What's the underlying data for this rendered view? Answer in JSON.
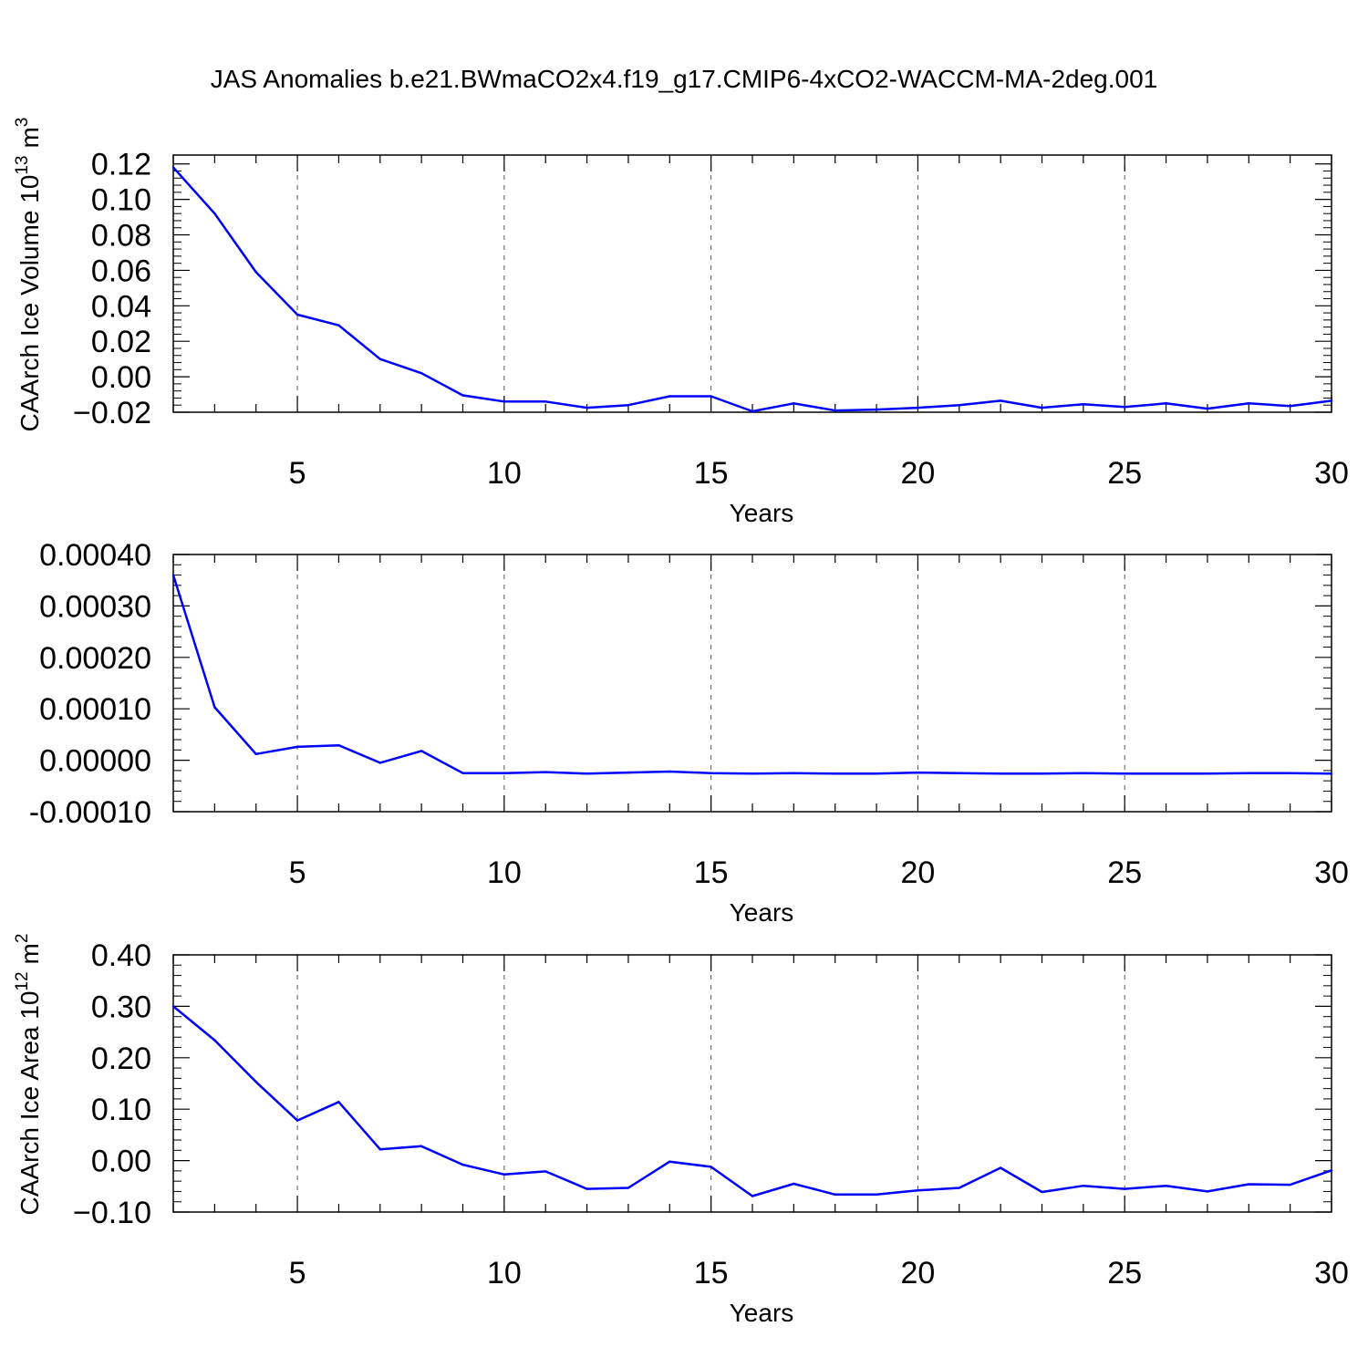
{
  "title": "JAS Anomalies b.e21.BWmaCO2x4.f19_g17.CMIP6-4xCO2-WACCM-MA-2deg.001",
  "colors": {
    "line": "#0000ff",
    "axis": "#000000",
    "grid": "#555555"
  },
  "chart_data": [
    {
      "type": "line",
      "title": "",
      "xlabel": "Years",
      "ylabel": "CAArch Ice Volume 10",
      "ylabel_exp": "13",
      "ylabel_unit": "m",
      "ylabel_unit_exp": "3",
      "xlim": [
        2,
        30
      ],
      "ylim": [
        -0.02,
        0.125
      ],
      "xticks": [
        5,
        10,
        15,
        20,
        25,
        30
      ],
      "xtick_labels": [
        "5",
        "10",
        "15",
        "20",
        "25",
        "30"
      ],
      "yticks": [
        -0.02,
        0.0,
        0.02,
        0.04,
        0.06,
        0.08,
        0.1,
        0.12
      ],
      "ytick_labels": [
        "−0.02",
        "0.00",
        "0.02",
        "0.04",
        "0.06",
        "0.08",
        "0.10",
        "0.12"
      ],
      "grid": "vertical dashed at major x ticks",
      "x": [
        2,
        3,
        4,
        5,
        6,
        7,
        8,
        9,
        10,
        11,
        12,
        13,
        14,
        15,
        16,
        17,
        18,
        19,
        20,
        21,
        22,
        23,
        24,
        25,
        26,
        27,
        28,
        29,
        30
      ],
      "series": [
        {
          "values": [
            0.118,
            0.092,
            0.059,
            0.035,
            0.029,
            0.01,
            0.002,
            -0.0105,
            -0.014,
            -0.014,
            -0.0175,
            -0.016,
            -0.011,
            -0.011,
            -0.0195,
            -0.015,
            -0.019,
            -0.0185,
            -0.0175,
            -0.016,
            -0.0135,
            -0.0175,
            -0.0155,
            -0.017,
            -0.015,
            -0.018,
            -0.015,
            -0.0165,
            -0.0135
          ]
        }
      ]
    },
    {
      "type": "line",
      "title": "",
      "xlabel": "Years",
      "ylabel": "",
      "xlim": [
        2,
        30
      ],
      "ylim": [
        -0.0001,
        0.0004
      ],
      "xticks": [
        5,
        10,
        15,
        20,
        25,
        30
      ],
      "xtick_labels": [
        "5",
        "10",
        "15",
        "20",
        "25",
        "30"
      ],
      "yticks": [
        -0.0001,
        0.0,
        0.0001,
        0.0002,
        0.0003,
        0.0004
      ],
      "ytick_labels": [
        "-0.00010",
        "0.00000",
        "0.00010",
        "0.00020",
        "0.00030",
        "0.00040"
      ],
      "grid": "vertical dashed at major x ticks",
      "x": [
        2,
        3,
        4,
        5,
        6,
        7,
        8,
        9,
        10,
        11,
        12,
        13,
        14,
        15,
        16,
        17,
        18,
        19,
        20,
        21,
        22,
        23,
        24,
        25,
        26,
        27,
        28,
        29,
        30
      ],
      "series": [
        {
          "values": [
            0.00036,
            0.000103,
            1.2e-05,
            2.6e-05,
            2.9e-05,
            -5e-06,
            1.8e-05,
            -2.5e-05,
            -2.5e-05,
            -2.3e-05,
            -2.6e-05,
            -2.4e-05,
            -2.2e-05,
            -2.5e-05,
            -2.6e-05,
            -2.5e-05,
            -2.6e-05,
            -2.6e-05,
            -2.4e-05,
            -2.5e-05,
            -2.6e-05,
            -2.6e-05,
            -2.5e-05,
            -2.6e-05,
            -2.6e-05,
            -2.6e-05,
            -2.5e-05,
            -2.5e-05,
            -2.6e-05
          ]
        }
      ]
    },
    {
      "type": "line",
      "title": "",
      "xlabel": "Years",
      "ylabel": "CAArch Ice Area 10",
      "ylabel_exp": "12",
      "ylabel_unit": "m",
      "ylabel_unit_exp": "2",
      "xlim": [
        2,
        30
      ],
      "ylim": [
        -0.1,
        0.4
      ],
      "xticks": [
        5,
        10,
        15,
        20,
        25,
        30
      ],
      "xtick_labels": [
        "5",
        "10",
        "15",
        "20",
        "25",
        "30"
      ],
      "yticks": [
        -0.1,
        0.0,
        0.1,
        0.2,
        0.3,
        0.4
      ],
      "ytick_labels": [
        "−0.10",
        "0.00",
        "0.10",
        "0.20",
        "0.30",
        "0.40"
      ],
      "grid": "vertical dashed at major x ticks",
      "x": [
        2,
        3,
        4,
        5,
        6,
        7,
        8,
        9,
        10,
        11,
        12,
        13,
        14,
        15,
        16,
        17,
        18,
        19,
        20,
        21,
        22,
        23,
        24,
        25,
        26,
        27,
        28,
        29,
        30
      ],
      "series": [
        {
          "values": [
            0.3,
            0.234,
            0.153,
            0.078,
            0.114,
            0.022,
            0.028,
            -0.008,
            -0.027,
            -0.021,
            -0.055,
            -0.053,
            -0.002,
            -0.012,
            -0.069,
            -0.045,
            -0.066,
            -0.066,
            -0.058,
            -0.053,
            -0.014,
            -0.061,
            -0.049,
            -0.055,
            -0.049,
            -0.06,
            -0.046,
            -0.047,
            -0.019
          ]
        }
      ]
    }
  ]
}
